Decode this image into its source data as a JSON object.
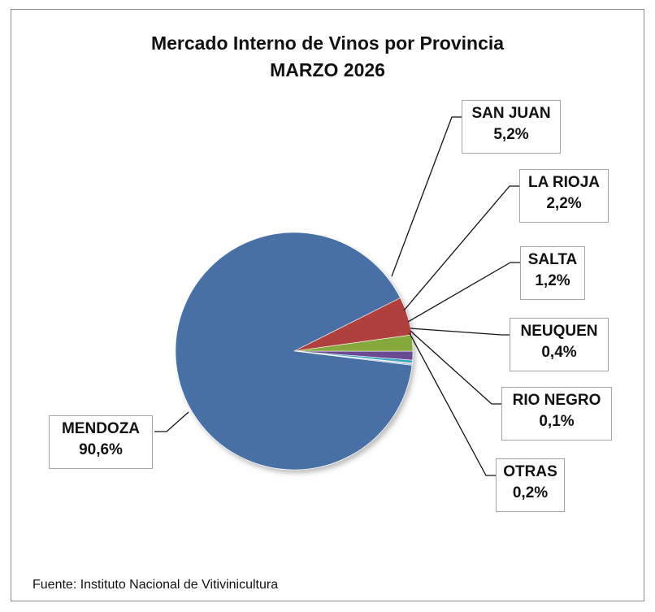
{
  "chart_data": {
    "type": "pie",
    "title": "Mercado Interno de Vinos por Provincia",
    "subtitle": "MARZO 2026",
    "slices": [
      {
        "label": "MENDOZA",
        "value": 90.6,
        "value_label": "90,6%",
        "color": "#4a6fa5"
      },
      {
        "label": "SAN JUAN",
        "value": 5.2,
        "value_label": "5,2%",
        "color": "#b0413e"
      },
      {
        "label": "LA RIOJA",
        "value": 2.2,
        "value_label": "2,2%",
        "color": "#86a93c"
      },
      {
        "label": "SALTA",
        "value": 1.2,
        "value_label": "1,2%",
        "color": "#6a4c93"
      },
      {
        "label": "NEUQUEN",
        "value": 0.4,
        "value_label": "0,4%",
        "color": "#3da6c4"
      },
      {
        "label": "RIO NEGRO",
        "value": 0.1,
        "value_label": "0,1%",
        "color": "#d9822b"
      },
      {
        "label": "OTRAS",
        "value": 0.2,
        "value_label": "0,2%",
        "color": "#8eb4e3"
      }
    ]
  },
  "source": "Fuente: Instituto Nacional de Vitivinicultura"
}
